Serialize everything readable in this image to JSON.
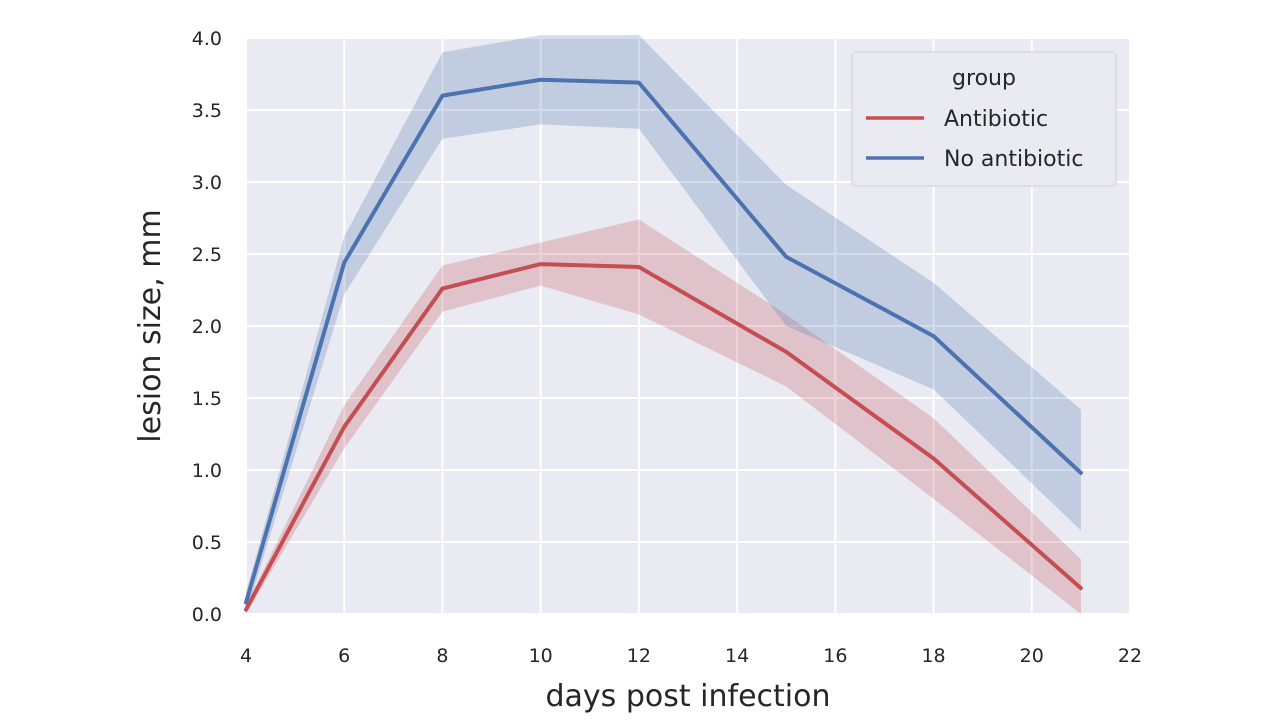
{
  "chart_data": {
    "type": "line",
    "xlabel": "days post infection",
    "ylabel": "lesion size, mm",
    "xlim": [
      4,
      22
    ],
    "ylim": [
      0,
      4
    ],
    "xticks": [
      "4",
      "6",
      "8",
      "10",
      "12",
      "14",
      "16",
      "18",
      "20",
      "22"
    ],
    "yticks": [
      "0.0",
      "0.5",
      "1.0",
      "1.5",
      "2.0",
      "2.5",
      "3.0",
      "3.5",
      "4.0"
    ],
    "grid": true,
    "legend": {
      "title": "group",
      "placement": "top-right"
    },
    "x": [
      4,
      6,
      8,
      10,
      12,
      15,
      18,
      21
    ],
    "series": [
      {
        "name": "Antibiotic",
        "color": "#c44e52",
        "values": [
          0.03,
          1.3,
          2.26,
          2.43,
          2.41,
          1.82,
          1.08,
          0.18
        ],
        "ci_low": [
          0.0,
          1.15,
          2.1,
          2.28,
          2.08,
          1.58,
          0.8,
          0.0
        ],
        "ci_high": [
          0.06,
          1.45,
          2.42,
          2.58,
          2.74,
          2.08,
          1.36,
          0.38
        ]
      },
      {
        "name": "No antibiotic",
        "color": "#4c72b0",
        "values": [
          0.08,
          2.44,
          3.6,
          3.71,
          3.69,
          2.48,
          1.93,
          0.98
        ],
        "ci_low": [
          0.0,
          2.22,
          3.3,
          3.4,
          3.37,
          2.0,
          1.56,
          0.58
        ],
        "ci_high": [
          0.15,
          2.62,
          3.9,
          4.02,
          4.02,
          2.98,
          2.3,
          1.42
        ]
      }
    ]
  }
}
